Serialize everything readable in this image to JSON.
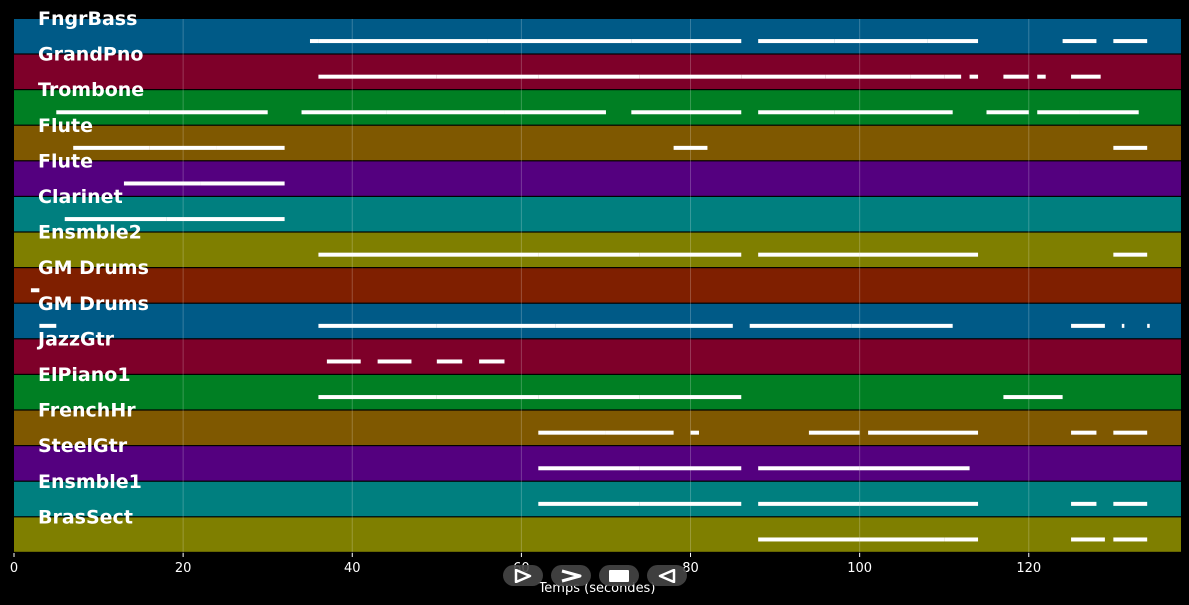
{
  "chart_data": {
    "type": "piano-roll",
    "xlabel": "Temps (secondes)",
    "xlim": [
      0,
      138
    ],
    "xticks": [
      0,
      20,
      40,
      60,
      80,
      100,
      120
    ],
    "grid": true,
    "tracks": [
      {
        "name": "FngrBass",
        "color": "#005a87",
        "notes": [
          [
            35,
            36
          ],
          [
            36,
            56
          ],
          [
            56,
            73
          ],
          [
            73,
            86
          ],
          [
            88,
            97
          ],
          [
            97,
            108
          ],
          [
            108,
            114
          ],
          [
            124,
            128
          ],
          [
            130,
            134
          ]
        ]
      },
      {
        "name": "GrandPno",
        "color": "#7e0029",
        "notes": [
          [
            36,
            50
          ],
          [
            50,
            62
          ],
          [
            62,
            74
          ],
          [
            74,
            86
          ],
          [
            86,
            96
          ],
          [
            96,
            106
          ],
          [
            106,
            110
          ],
          [
            110,
            112
          ],
          [
            113,
            114
          ],
          [
            117,
            120
          ],
          [
            121,
            122
          ],
          [
            125,
            128.5
          ]
        ]
      },
      {
        "name": "Trombone",
        "color": "#007f23",
        "notes": [
          [
            5,
            16
          ],
          [
            16,
            30
          ],
          [
            34,
            44
          ],
          [
            44,
            58
          ],
          [
            58,
            70
          ],
          [
            73,
            86
          ],
          [
            88,
            97
          ],
          [
            97,
            111
          ],
          [
            115,
            120
          ],
          [
            121,
            126
          ],
          [
            126,
            133
          ]
        ]
      },
      {
        "name": "Flute",
        "color": "#7f5800",
        "notes": [
          [
            7,
            16
          ],
          [
            16,
            24
          ],
          [
            24,
            32
          ],
          [
            78,
            82
          ],
          [
            130,
            134
          ]
        ]
      },
      {
        "name": "Flute",
        "color": "#54007f",
        "notes": [
          [
            13,
            22
          ],
          [
            22,
            32
          ]
        ]
      },
      {
        "name": "Clarinet",
        "color": "#007f7f",
        "notes": [
          [
            6,
            18
          ],
          [
            18,
            32
          ]
        ]
      },
      {
        "name": "Ensmble2",
        "color": "#7f7f00",
        "notes": [
          [
            36,
            46
          ],
          [
            46,
            62
          ],
          [
            62,
            74
          ],
          [
            74,
            86
          ],
          [
            88,
            100
          ],
          [
            100,
            114
          ],
          [
            130,
            134
          ]
        ]
      },
      {
        "name": "GM Drums",
        "color": "#7f1f00",
        "notes": [
          [
            2,
            3
          ]
        ]
      },
      {
        "name": "GM Drums",
        "color": "#005a87",
        "notes": [
          [
            3,
            5
          ],
          [
            36,
            50
          ],
          [
            50,
            64
          ],
          [
            64,
            85
          ],
          [
            87,
            99
          ],
          [
            99,
            111
          ],
          [
            125,
            129
          ],
          [
            131,
            131.3
          ],
          [
            134,
            134.3
          ]
        ]
      },
      {
        "name": "JazzGtr",
        "color": "#7e0029",
        "notes": [
          [
            37,
            41
          ],
          [
            43,
            47
          ],
          [
            50,
            53
          ],
          [
            55,
            58
          ]
        ]
      },
      {
        "name": "ElPiano1",
        "color": "#007f23",
        "notes": [
          [
            36,
            50
          ],
          [
            50,
            62
          ],
          [
            62,
            74
          ],
          [
            74,
            86
          ],
          [
            117,
            124
          ]
        ]
      },
      {
        "name": "FrenchHr",
        "color": "#7f5800",
        "notes": [
          [
            62,
            70
          ],
          [
            70,
            78
          ],
          [
            80,
            81
          ],
          [
            94,
            100
          ],
          [
            101,
            114
          ],
          [
            125,
            128
          ],
          [
            130,
            134
          ]
        ]
      },
      {
        "name": "SteelGtr",
        "color": "#54007f",
        "notes": [
          [
            62,
            74
          ],
          [
            74,
            86
          ],
          [
            88,
            100
          ],
          [
            100,
            113
          ]
        ]
      },
      {
        "name": "Ensmble1",
        "color": "#007f7f",
        "notes": [
          [
            62,
            74
          ],
          [
            74,
            86
          ],
          [
            88,
            100
          ],
          [
            100,
            114
          ],
          [
            125,
            128
          ],
          [
            130,
            134
          ]
        ]
      },
      {
        "name": "BrasSect",
        "color": "#7f7f00",
        "notes": [
          [
            88,
            100
          ],
          [
            100,
            110
          ],
          [
            110,
            114
          ],
          [
            125,
            129
          ],
          [
            130,
            134
          ]
        ]
      }
    ]
  },
  "controls": {
    "play_icon": "play-outline-icon",
    "forward_icon": "chevron-right-icon",
    "stop_icon": "stop-icon",
    "back_icon": "play-reverse-icon"
  }
}
